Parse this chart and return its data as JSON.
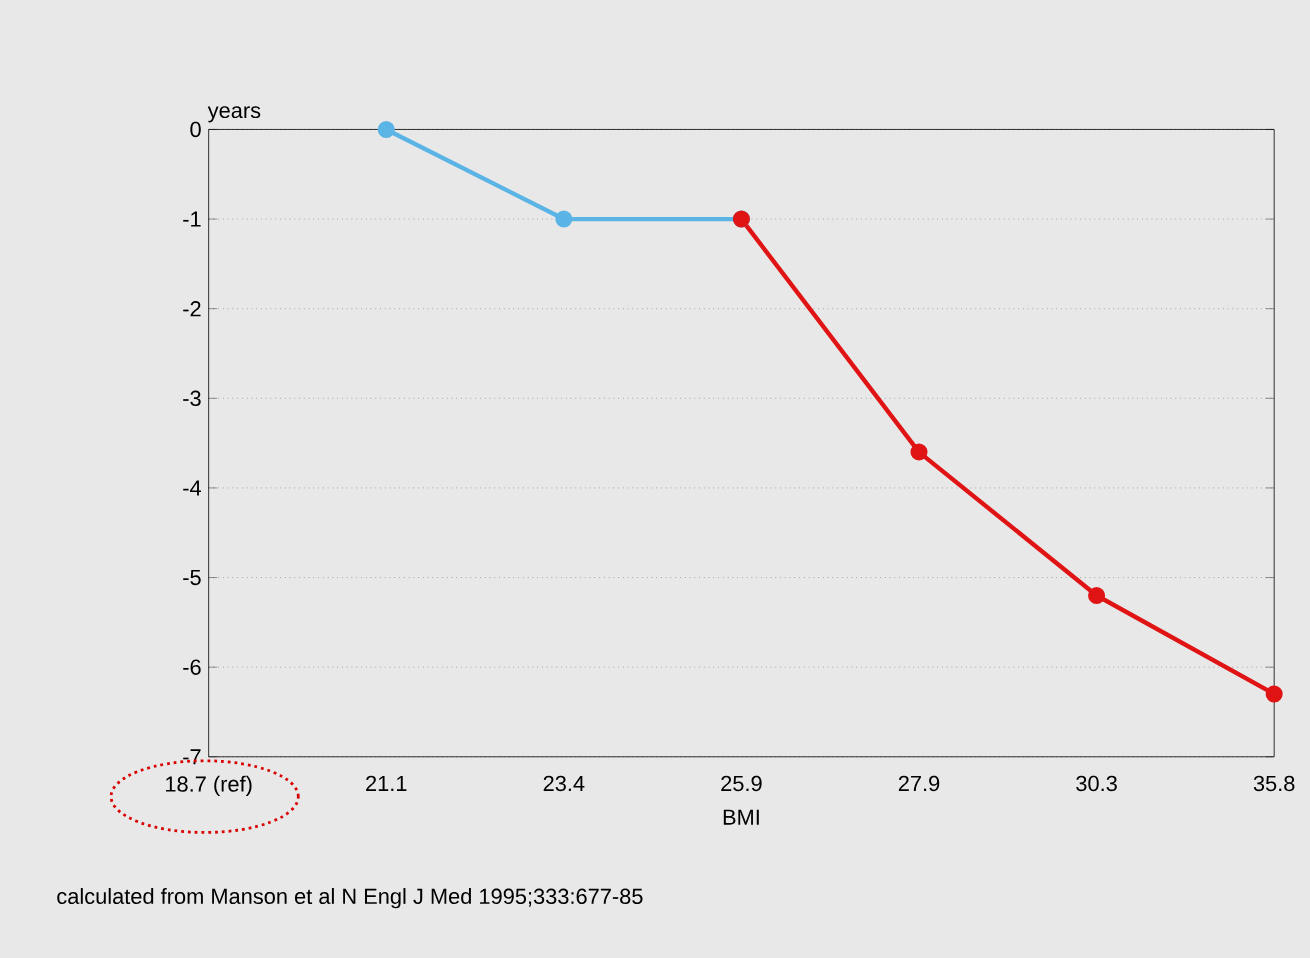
{
  "chart_data": {
    "type": "line",
    "ylabel": "years",
    "xlabel": "BMI",
    "categories": [
      "18.7 (ref)",
      "21.1",
      "23.4",
      "25.9",
      "27.9",
      "30.3",
      "35.8"
    ],
    "series": [
      {
        "color": "#5ab4e5",
        "values": [
          null,
          0,
          -1,
          -1,
          null,
          null,
          null
        ]
      },
      {
        "color": "#e01414",
        "values": [
          null,
          null,
          null,
          -1,
          -3.6,
          -5.2,
          -6.3
        ]
      }
    ],
    "ylim": [
      -7,
      0
    ],
    "yticks": [
      0,
      -1,
      -2,
      -3,
      -4,
      -5,
      -6,
      -7
    ],
    "grid": "y",
    "marker": "circle",
    "line_style": "solid",
    "annotations": [
      "calculated from Manson et al N Engl J Med 1995;333:677-85"
    ]
  }
}
